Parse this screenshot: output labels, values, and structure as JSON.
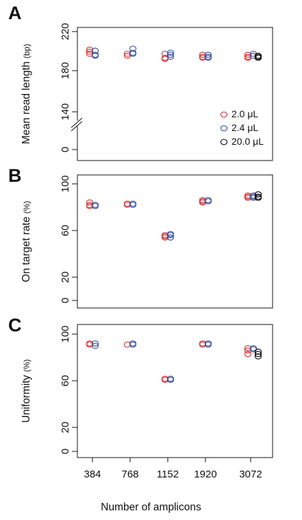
{
  "figure": {
    "xlabel": "Number of amplicons"
  },
  "chart_data": [
    {
      "type": "scatter",
      "panel_label": "A",
      "ylabel": "Mean read length",
      "ylabel_unit": "(bp)",
      "categories": [
        "384",
        "768",
        "1152",
        "1920",
        "3072"
      ],
      "yticks": [
        "220",
        "180",
        "140",
        "0"
      ],
      "ylim": [
        120,
        220
      ],
      "axis_break": true,
      "legend": {
        "placement": "bottom-right",
        "entries": [
          {
            "name": "2.0 μL",
            "color": "#d93a3a"
          },
          {
            "name": "2.4 μL",
            "color": "#3e56a6"
          },
          {
            "name": "20.0 μL",
            "color": "#111111"
          }
        ]
      },
      "series": [
        {
          "name": "2.0 μL",
          "color": "#d93a3a",
          "points": [
            [
              0,
              202
            ],
            [
              0,
              200
            ],
            [
              0,
              198
            ],
            [
              1,
              198
            ],
            [
              1,
              196
            ],
            [
              2,
              198
            ],
            [
              2,
              194
            ],
            [
              2,
              193
            ],
            [
              3,
              197
            ],
            [
              3,
              195
            ],
            [
              3,
              194
            ],
            [
              4,
              197
            ],
            [
              4,
              195
            ],
            [
              4,
              194
            ]
          ]
        },
        {
          "name": "2.4 μL",
          "color": "#3e56a6",
          "points": [
            [
              0,
              201
            ],
            [
              0,
              197
            ],
            [
              0,
              196
            ],
            [
              1,
              203
            ],
            [
              1,
              199
            ],
            [
              1,
              198
            ],
            [
              2,
              199
            ],
            [
              2,
              197
            ],
            [
              2,
              195
            ],
            [
              3,
              197
            ],
            [
              3,
              195
            ],
            [
              3,
              194
            ],
            [
              4,
              198
            ],
            [
              4,
              196
            ]
          ]
        },
        {
          "name": "20.0 μL",
          "color": "#111111",
          "points": [
            [
              4,
              196
            ],
            [
              4,
              195
            ],
            [
              4,
              194
            ]
          ]
        }
      ]
    },
    {
      "type": "scatter",
      "panel_label": "B",
      "ylabel": "On target rate",
      "ylabel_unit": "(%)",
      "categories": [
        "384",
        "768",
        "1152",
        "1920",
        "3072"
      ],
      "yticks": [
        "100",
        "60",
        "20",
        "0"
      ],
      "ylim": [
        0,
        100
      ],
      "series": [
        {
          "name": "2.0 μL",
          "color": "#d93a3a",
          "points": [
            [
              0,
              84
            ],
            [
              0,
              82
            ],
            [
              0,
              81
            ],
            [
              1,
              83
            ],
            [
              1,
              82
            ],
            [
              2,
              56
            ],
            [
              2,
              55
            ],
            [
              2,
              54
            ],
            [
              3,
              86
            ],
            [
              3,
              85
            ],
            [
              3,
              84
            ],
            [
              4,
              90
            ],
            [
              4,
              89
            ],
            [
              4,
              88
            ]
          ]
        },
        {
          "name": "2.4 μL",
          "color": "#3e56a6",
          "points": [
            [
              0,
              82
            ],
            [
              0,
              81
            ],
            [
              1,
              83
            ],
            [
              1,
              82
            ],
            [
              2,
              57
            ],
            [
              2,
              56
            ],
            [
              2,
              54
            ],
            [
              3,
              86
            ],
            [
              3,
              85
            ],
            [
              4,
              90
            ],
            [
              4,
              89
            ],
            [
              4,
              88
            ]
          ]
        },
        {
          "name": "20.0 μL",
          "color": "#111111",
          "points": [
            [
              4,
              91
            ],
            [
              4,
              89
            ],
            [
              4,
              88
            ]
          ]
        }
      ]
    },
    {
      "type": "scatter",
      "panel_label": "C",
      "ylabel": "Uniformity",
      "ylabel_unit": "(%)",
      "categories": [
        "384",
        "768",
        "1152",
        "1920",
        "3072"
      ],
      "yticks": [
        "100",
        "60",
        "20",
        "0"
      ],
      "ylim": [
        0,
        100
      ],
      "series": [
        {
          "name": "2.0 μL",
          "color": "#d93a3a",
          "points": [
            [
              0,
              92
            ],
            [
              0,
              91
            ],
            [
              1,
              91
            ],
            [
              2,
              62
            ],
            [
              2,
              61
            ],
            [
              3,
              92
            ],
            [
              3,
              91
            ],
            [
              4,
              88
            ],
            [
              4,
              86
            ],
            [
              4,
              83
            ]
          ]
        },
        {
          "name": "2.4 μL",
          "color": "#3e56a6",
          "points": [
            [
              0,
              92
            ],
            [
              0,
              90
            ],
            [
              1,
              92
            ],
            [
              1,
              91
            ],
            [
              2,
              62
            ],
            [
              2,
              61
            ],
            [
              3,
              92
            ],
            [
              3,
              91
            ],
            [
              4,
              88
            ],
            [
              4,
              87
            ]
          ]
        },
        {
          "name": "20.0 μL",
          "color": "#111111",
          "points": [
            [
              4,
              85
            ],
            [
              4,
              83
            ],
            [
              4,
              81
            ]
          ]
        }
      ]
    }
  ]
}
